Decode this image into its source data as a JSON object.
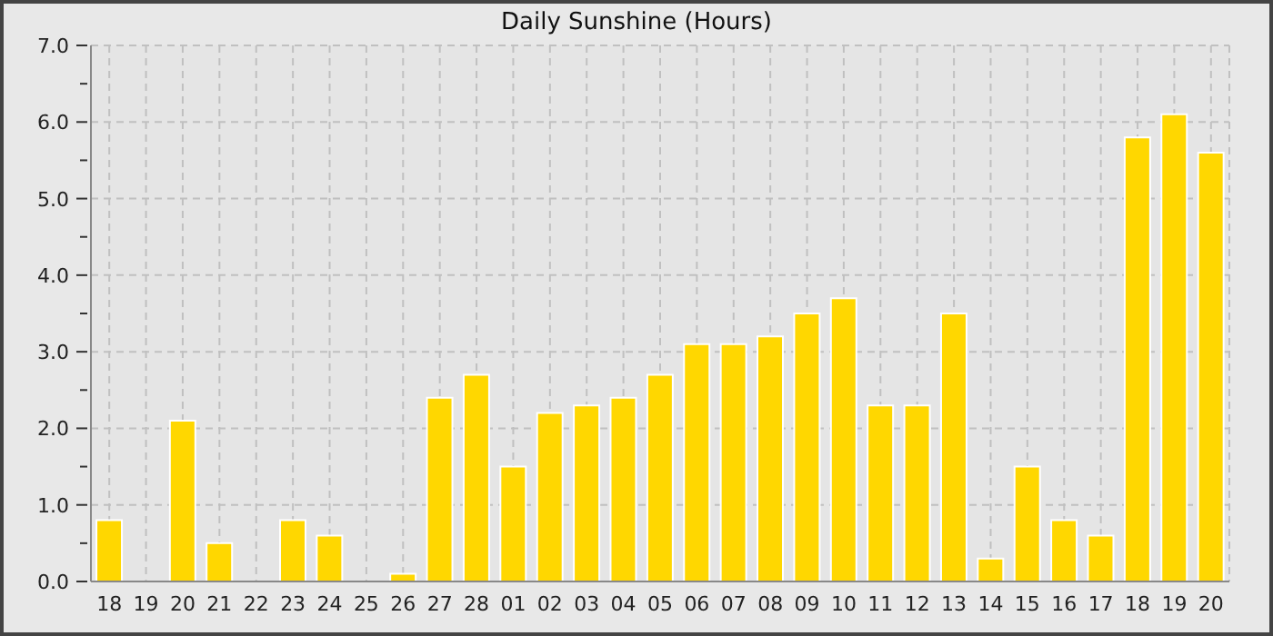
{
  "chart_data": {
    "type": "bar",
    "title": "Daily Sunshine (Hours)",
    "categories": [
      "18",
      "19",
      "20",
      "21",
      "22",
      "23",
      "24",
      "25",
      "26",
      "27",
      "28",
      "01",
      "02",
      "03",
      "04",
      "05",
      "06",
      "07",
      "08",
      "09",
      "10",
      "11",
      "12",
      "13",
      "14",
      "15",
      "16",
      "17",
      "18",
      "19",
      "20"
    ],
    "values": [
      0.8,
      0,
      2.1,
      0.5,
      0,
      0.8,
      0.6,
      0,
      0.1,
      2.4,
      2.7,
      1.5,
      2.2,
      2.3,
      2.4,
      2.7,
      3.1,
      3.1,
      3.2,
      3.5,
      3.7,
      2.3,
      2.3,
      3.5,
      0.3,
      1.5,
      0.8,
      0.6,
      5.8,
      6.1,
      5.6
    ],
    "color": "#ffd700",
    "ylim": [
      0,
      7
    ],
    "yticks": [
      {
        "value": 0,
        "label": "0.0"
      },
      {
        "value": 0.5,
        "label": null
      },
      {
        "value": 1,
        "label": "1.0"
      },
      {
        "value": 1.5,
        "label": null
      },
      {
        "value": 2,
        "label": "2.0"
      },
      {
        "value": 2.5,
        "label": null
      },
      {
        "value": 3,
        "label": "3.0"
      },
      {
        "value": 3.5,
        "label": null
      },
      {
        "value": 4,
        "label": "4.0"
      },
      {
        "value": 4.5,
        "label": null
      },
      {
        "value": 5,
        "label": "5.0"
      },
      {
        "value": 5.5,
        "label": null
      },
      {
        "value": 6,
        "label": "6.0"
      },
      {
        "value": 6.5,
        "label": null
      },
      {
        "value": 7,
        "label": "7.0"
      }
    ],
    "grid": true
  }
}
